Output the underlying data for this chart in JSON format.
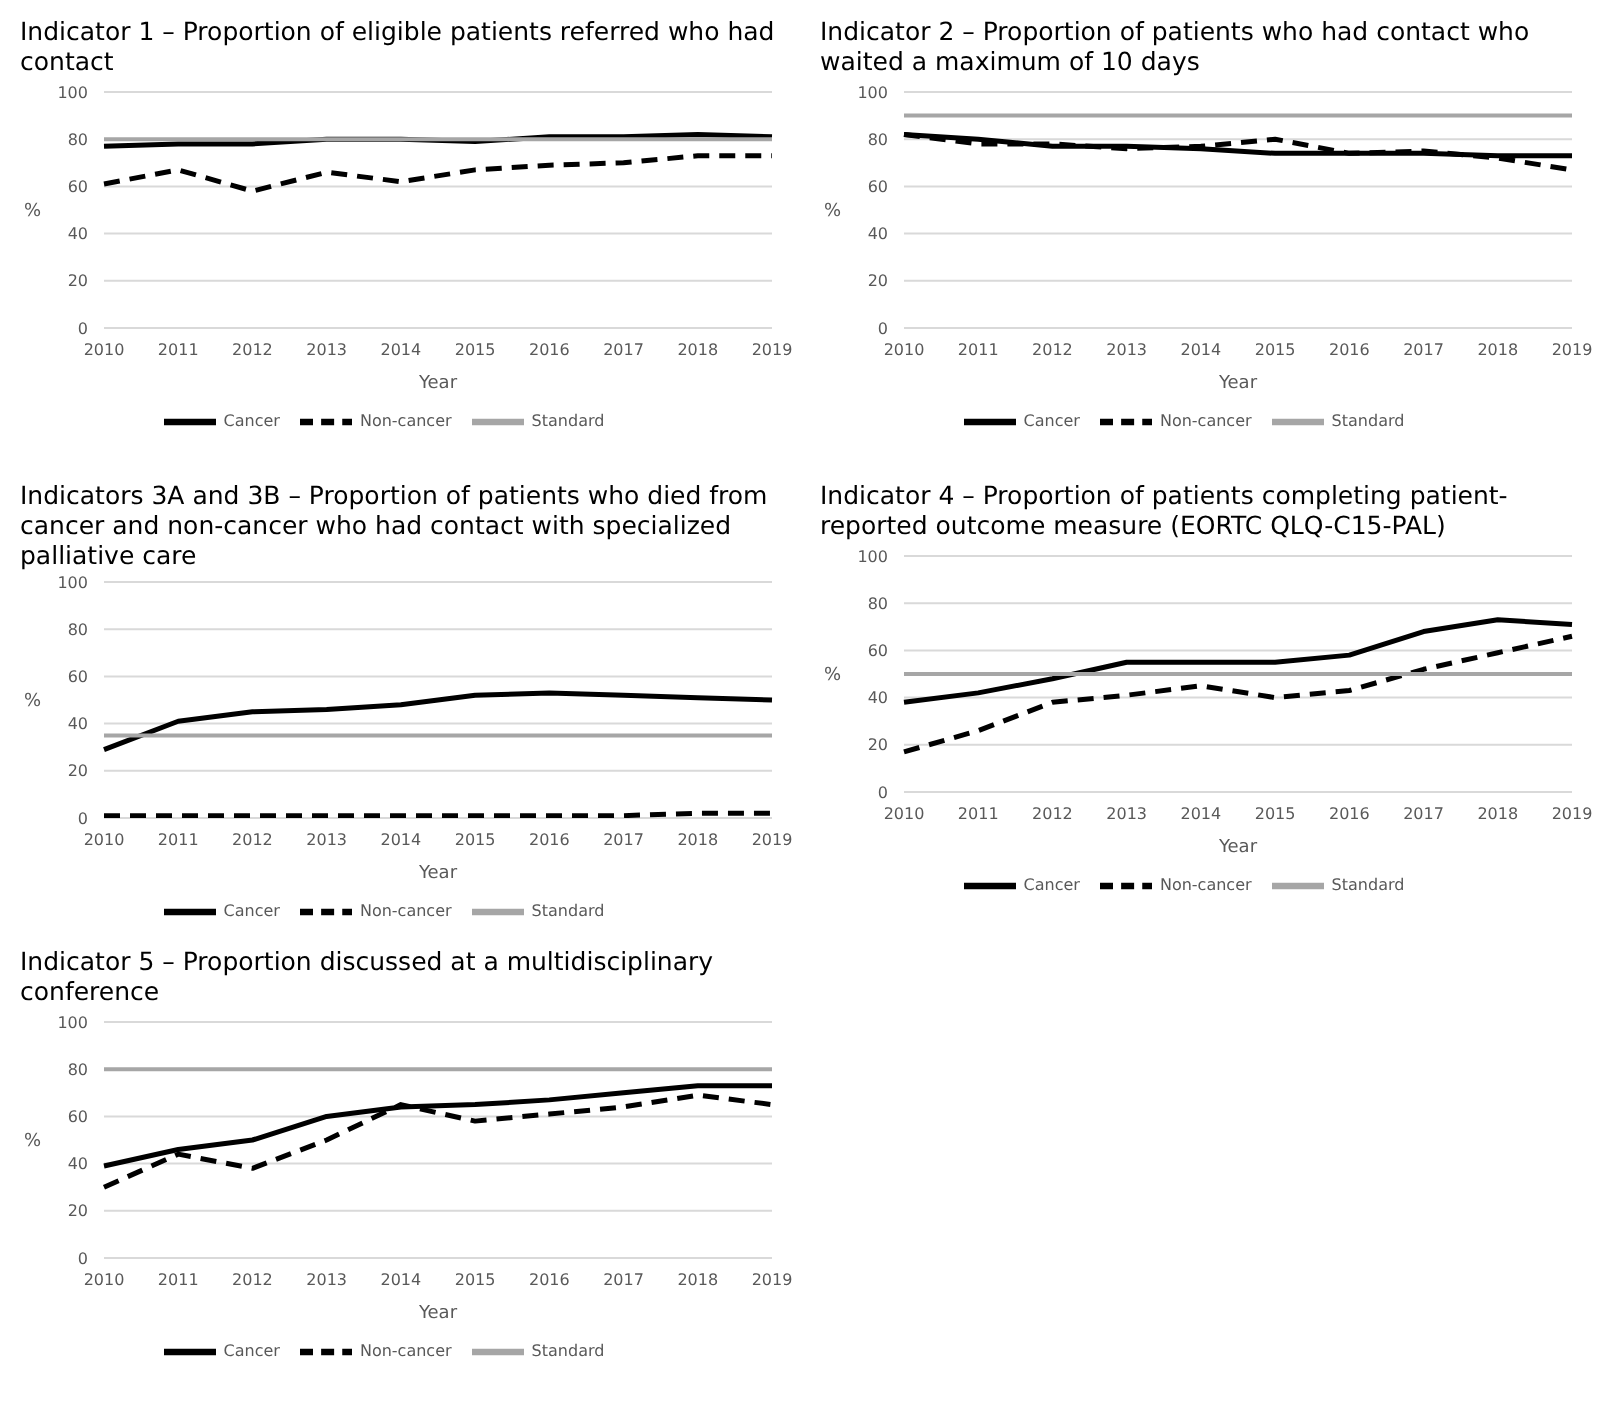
{
  "chart_data": [
    {
      "type": "line",
      "title": "Indicator 1 – Proportion of eligible patients referred who had contact",
      "xlabel": "Year",
      "ylabel": "%",
      "categories": [
        "2010",
        "2011",
        "2012",
        "2013",
        "2014",
        "2015",
        "2016",
        "2017",
        "2018",
        "2019"
      ],
      "ylim": [
        0,
        100
      ],
      "yticks": [
        0,
        20,
        40,
        60,
        80,
        100
      ],
      "grid": "y",
      "legend": "bottom",
      "marker": "none",
      "series": [
        {
          "name": "Cancer",
          "color": "#000000",
          "line_style": "solid",
          "values": [
            77,
            78,
            78,
            80,
            80,
            79,
            81,
            81,
            82,
            81
          ]
        },
        {
          "name": "Non-cancer",
          "color": "#000000",
          "line_style": "dashed",
          "values": [
            61,
            67,
            58,
            66,
            62,
            67,
            69,
            70,
            73,
            73
          ]
        },
        {
          "name": "Standard",
          "color": "#a6a6a6",
          "line_style": "solid",
          "values": [
            80,
            80,
            80,
            80,
            80,
            80,
            80,
            80,
            80,
            80
          ]
        }
      ]
    },
    {
      "type": "line",
      "title": "Indicator 2 – Proportion of patients who had contact who waited a maximum of 10 days",
      "xlabel": "Year",
      "ylabel": "%",
      "categories": [
        "2010",
        "2011",
        "2012",
        "2013",
        "2014",
        "2015",
        "2016",
        "2017",
        "2018",
        "2019"
      ],
      "ylim": [
        0,
        100
      ],
      "yticks": [
        0,
        20,
        40,
        60,
        80,
        100
      ],
      "grid": "y",
      "legend": "bottom",
      "marker": "none",
      "series": [
        {
          "name": "Cancer",
          "color": "#000000",
          "line_style": "solid",
          "values": [
            82,
            80,
            77,
            77,
            76,
            74,
            74,
            74,
            73,
            73
          ]
        },
        {
          "name": "Non-cancer",
          "color": "#000000",
          "line_style": "dashed",
          "values": [
            82,
            78,
            78,
            76,
            77,
            80,
            74,
            75,
            72,
            67
          ]
        },
        {
          "name": "Standard",
          "color": "#a6a6a6",
          "line_style": "solid",
          "values": [
            90,
            90,
            90,
            90,
            90,
            90,
            90,
            90,
            90,
            90
          ]
        }
      ]
    },
    {
      "type": "line",
      "title": "Indicators 3A and 3B – Proportion of patients who died from cancer and non-cancer who had contact with specialized palliative care",
      "xlabel": "Year",
      "ylabel": "%",
      "categories": [
        "2010",
        "2011",
        "2012",
        "2013",
        "2014",
        "2015",
        "2016",
        "2017",
        "2018",
        "2019"
      ],
      "ylim": [
        0,
        100
      ],
      "yticks": [
        0,
        20,
        40,
        60,
        80,
        100
      ],
      "grid": "y",
      "legend": "bottom",
      "marker": "none",
      "series": [
        {
          "name": "Cancer",
          "color": "#000000",
          "line_style": "solid",
          "values": [
            29,
            41,
            45,
            46,
            48,
            52,
            53,
            52,
            51,
            50
          ]
        },
        {
          "name": "Non-cancer",
          "color": "#000000",
          "line_style": "dashed",
          "values": [
            1,
            1,
            1,
            1,
            1,
            1,
            1,
            1,
            2,
            2
          ]
        },
        {
          "name": "Standard",
          "color": "#a6a6a6",
          "line_style": "solid",
          "values": [
            35,
            35,
            35,
            35,
            35,
            35,
            35,
            35,
            35,
            35
          ]
        }
      ]
    },
    {
      "type": "line",
      "title": "Indicator 4 – Proportion of patients completing patient-reported outcome measure (EORTC QLQ-C15-PAL)",
      "xlabel": "Year",
      "ylabel": "%",
      "categories": [
        "2010",
        "2011",
        "2012",
        "2013",
        "2014",
        "2015",
        "2016",
        "2017",
        "2018",
        "2019"
      ],
      "ylim": [
        0,
        100
      ],
      "yticks": [
        0,
        20,
        40,
        60,
        80,
        100
      ],
      "grid": "y",
      "legend": "bottom",
      "marker": "none",
      "series": [
        {
          "name": "Cancer",
          "color": "#000000",
          "line_style": "solid",
          "values": [
            38,
            42,
            48,
            55,
            55,
            55,
            58,
            68,
            73,
            71
          ]
        },
        {
          "name": "Non-cancer",
          "color": "#000000",
          "line_style": "dashed",
          "values": [
            17,
            26,
            38,
            41,
            45,
            40,
            43,
            52,
            59,
            66
          ]
        },
        {
          "name": "Standard",
          "color": "#a6a6a6",
          "line_style": "solid",
          "values": [
            50,
            50,
            50,
            50,
            50,
            50,
            50,
            50,
            50,
            50
          ]
        }
      ]
    },
    {
      "type": "line",
      "title": "Indicator 5 – Proportion discussed at a multidisciplinary conference",
      "xlabel": "Year",
      "ylabel": "%",
      "categories": [
        "2010",
        "2011",
        "2012",
        "2013",
        "2014",
        "2015",
        "2016",
        "2017",
        "2018",
        "2019"
      ],
      "ylim": [
        0,
        100
      ],
      "yticks": [
        0,
        20,
        40,
        60,
        80,
        100
      ],
      "grid": "y",
      "legend": "bottom",
      "marker": "none",
      "series": [
        {
          "name": "Cancer",
          "color": "#000000",
          "line_style": "solid",
          "values": [
            39,
            46,
            50,
            60,
            64,
            65,
            67,
            70,
            73,
            73
          ]
        },
        {
          "name": "Non-cancer",
          "color": "#000000",
          "line_style": "dashed",
          "values": [
            30,
            44,
            38,
            50,
            65,
            58,
            61,
            64,
            69,
            65
          ]
        },
        {
          "name": "Standard",
          "color": "#a6a6a6",
          "line_style": "solid",
          "values": [
            80,
            80,
            80,
            80,
            80,
            80,
            80,
            80,
            80,
            80
          ]
        }
      ]
    }
  ]
}
